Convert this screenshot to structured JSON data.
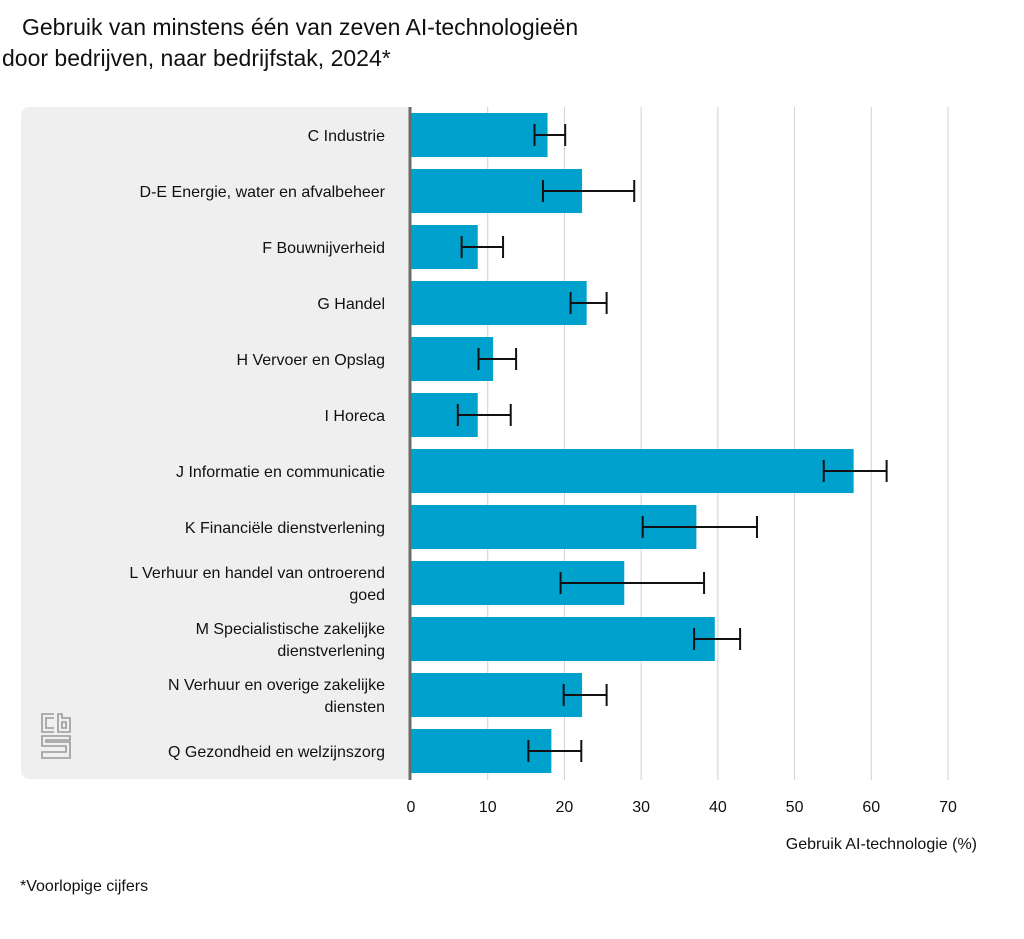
{
  "title": {
    "line1": "Gebruik van minstens één van zeven AI-technologieën",
    "line2": "door bedrijven, naar bedrijfstak, 2024*"
  },
  "footnote": "*Voorlopige cijfers",
  "logo": {
    "name": "cbs-logo",
    "text": "cbs"
  },
  "colors": {
    "bar": "#00a1cd",
    "panel": "#efefef",
    "axis": "#6b6b6b",
    "grid": "#d0d0d0",
    "error": "#111111"
  },
  "chart_data": {
    "type": "bar",
    "orientation": "horizontal",
    "title": "Gebruik van minstens één van zeven AI-technologieën door bedrijven, naar bedrijfstak, 2024*",
    "xlabel": "Gebruik AI-technologie (%)",
    "ylabel": "",
    "xlim": [
      0,
      70
    ],
    "xticks": [
      0,
      10,
      20,
      30,
      40,
      50,
      60,
      70
    ],
    "xtick_labels": [
      "0",
      "10",
      "20",
      "30",
      "40",
      "50",
      "60",
      "70"
    ],
    "grid": true,
    "categories": [
      [
        "C Industrie"
      ],
      [
        "D-E Energie, water en afvalbeheer"
      ],
      [
        "F Bouwnijverheid"
      ],
      [
        "G Handel"
      ],
      [
        "H Vervoer en Opslag"
      ],
      [
        "I Horeca"
      ],
      [
        "J Informatie en communicatie"
      ],
      [
        "K Financiële dienstverlening"
      ],
      [
        "L Verhuur en handel van ontroerend",
        "goed"
      ],
      [
        "M Specialistische zakelijke",
        "dienstverlening"
      ],
      [
        "N Verhuur en overige zakelijke",
        "diensten"
      ],
      [
        "Q Gezondheid en welzijnszorg"
      ]
    ],
    "values": [
      17.8,
      22.3,
      8.7,
      22.9,
      10.7,
      8.7,
      57.7,
      37.2,
      27.8,
      39.6,
      22.3,
      18.3
    ],
    "error_low": [
      16.1,
      17.2,
      6.6,
      20.8,
      8.8,
      6.1,
      53.8,
      30.2,
      19.5,
      36.9,
      19.9,
      15.3
    ],
    "error_high": [
      20.1,
      29.1,
      12.0,
      25.5,
      13.7,
      13.0,
      62.0,
      45.1,
      38.2,
      42.9,
      25.5,
      22.2
    ],
    "footnote": "*Voorlopige cijfers"
  }
}
